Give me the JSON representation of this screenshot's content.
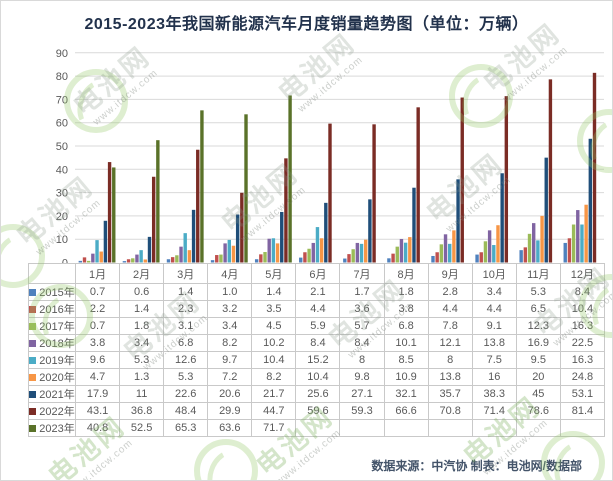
{
  "title": "2015-2023年我国新能源汽车月度销量趋势图（单位：万辆）",
  "footer": {
    "text": "数据来源：中汽协  制表：电池网/数据部"
  },
  "watermark": {
    "brand": "电池网",
    "url": "www.itdcw.com"
  },
  "colors": {
    "title_text": "#22324c",
    "axis_text": "#595959",
    "gridline": "#d9d9d9",
    "table_border": "#c9c9c9",
    "footer_text": "#44546a",
    "watermark_green": "#8bc34a"
  },
  "chart_data": {
    "type": "bar",
    "title": "2015-2023年我国新能源汽车月度销量趋势图",
    "unit": "万辆",
    "xlabel": "",
    "ylabel": "",
    "ylim": [
      0,
      90
    ],
    "ytick_step": 10,
    "grid": true,
    "legend_position": "data-table-left",
    "categories": [
      "1月",
      "2月",
      "3月",
      "4月",
      "5月",
      "6月",
      "7月",
      "8月",
      "9月",
      "10月",
      "11月",
      "12月"
    ],
    "series": [
      {
        "name": "2015年",
        "color": "#4f81bd",
        "values": [
          0.7,
          0.6,
          1.4,
          1.0,
          1.4,
          2.1,
          1.7,
          1.8,
          2.8,
          3.4,
          5.3,
          8.4
        ],
        "display": [
          "0.7",
          "0.6",
          "1.4",
          "1.0",
          "1.4",
          "2.1",
          "1.7",
          "1.8",
          "2.8",
          "3.4",
          "5.3",
          "8.4"
        ]
      },
      {
        "name": "2016年",
        "color": "#c0504d",
        "values": [
          2.2,
          1.4,
          2.3,
          3.2,
          3.5,
          4.4,
          3.6,
          3.8,
          4.4,
          4.4,
          6.5,
          10.4
        ],
        "display": [
          "2.2",
          "1.4",
          "2.3",
          "3.2",
          "3.5",
          "4.4",
          "3.6",
          "3.8",
          "4.4",
          "4.4",
          "6.5",
          "10.4"
        ]
      },
      {
        "name": "2017年",
        "color": "#9bbb59",
        "values": [
          0.7,
          1.8,
          3.1,
          3.4,
          4.5,
          5.9,
          5.7,
          6.8,
          7.8,
          9.1,
          12.3,
          16.3
        ],
        "display": [
          "0.7",
          "1.8",
          "3.1",
          "3.4",
          "4.5",
          "5.9",
          "5.7",
          "6.8",
          "7.8",
          "9.1",
          "12.3",
          "16.3"
        ]
      },
      {
        "name": "2018年",
        "color": "#8064a2",
        "values": [
          3.8,
          3.4,
          6.8,
          8.2,
          10.2,
          8.4,
          8.4,
          10.1,
          12.1,
          13.8,
          16.9,
          22.5
        ],
        "display": [
          "3.8",
          "3.4",
          "6.8",
          "8.2",
          "10.2",
          "8.4",
          "8.4",
          "10.1",
          "12.1",
          "13.8",
          "16.9",
          "22.5"
        ]
      },
      {
        "name": "2019年",
        "color": "#4bacc6",
        "values": [
          9.6,
          5.3,
          12.6,
          9.7,
          10.4,
          15.2,
          8,
          8.5,
          8,
          7.5,
          9.5,
          16.3
        ],
        "display": [
          "9.6",
          "5.3",
          "12.6",
          "9.7",
          "10.4",
          "15.2",
          "8",
          "8.5",
          "8",
          "7.5",
          "9.5",
          "16.3"
        ]
      },
      {
        "name": "2020年",
        "color": "#f79646",
        "values": [
          4.7,
          1.3,
          5.3,
          7.2,
          8.2,
          10.4,
          9.8,
          10.9,
          13.8,
          16,
          20,
          24.8
        ],
        "display": [
          "4.7",
          "1.3",
          "5.3",
          "7.2",
          "8.2",
          "10.4",
          "9.8",
          "10.9",
          "13.8",
          "16",
          "20",
          "24.8"
        ]
      },
      {
        "name": "2021年",
        "color": "#1f4e79",
        "values": [
          17.9,
          11,
          22.6,
          20.6,
          21.7,
          25.6,
          27.1,
          32.1,
          35.7,
          38.3,
          45,
          53.1
        ],
        "display": [
          "17.9",
          "11",
          "22.6",
          "20.6",
          "21.7",
          "25.6",
          "27.1",
          "32.1",
          "35.7",
          "38.3",
          "45",
          "53.1"
        ]
      },
      {
        "name": "2022年",
        "color": "#7b2c25",
        "values": [
          43.1,
          36.8,
          48.4,
          29.9,
          44.7,
          59.6,
          59.3,
          66.6,
          70.8,
          71.4,
          78.6,
          81.4
        ],
        "display": [
          "43.1",
          "36.8",
          "48.4",
          "29.9",
          "44.7",
          "59.6",
          "59.3",
          "66.6",
          "70.8",
          "71.4",
          "78.6",
          "81.4"
        ]
      },
      {
        "name": "2023年",
        "color": "#5a7229",
        "values": [
          40.8,
          52.5,
          65.3,
          63.6,
          71.7,
          null,
          null,
          null,
          null,
          null,
          null,
          null
        ],
        "display": [
          "40.8",
          "52.5",
          "65.3",
          "63.6",
          "71.7",
          "",
          "",
          "",
          "",
          "",
          "",
          ""
        ]
      }
    ]
  }
}
